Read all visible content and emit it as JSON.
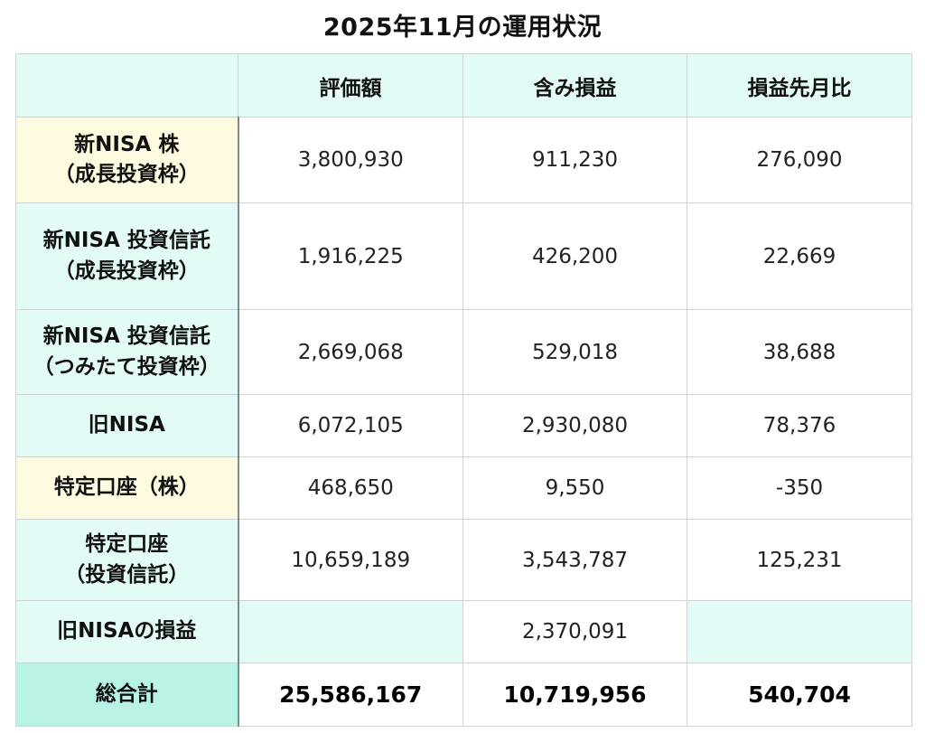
{
  "title": "2025年11月の運用状況",
  "columns": [
    "評価額",
    "含み損益",
    "損益先月比"
  ],
  "rows": [
    {
      "label_line1": "新NISA 株",
      "label_line2": "（成長投資枠）",
      "tone": "cream",
      "values": [
        "3,800,930",
        "911,230",
        "276,090"
      ]
    },
    {
      "label_line1": "新NISA 投資信託",
      "label_line2": "（成長投資枠）",
      "tone": "mint",
      "values": [
        "1,916,225",
        "426,200",
        "22,669"
      ]
    },
    {
      "label_line1": "新NISA 投資信託",
      "label_line2": "（つみたて投資枠）",
      "tone": "mint",
      "values": [
        "2,669,068",
        "529,018",
        "38,688"
      ]
    },
    {
      "label_line1": "旧NISA",
      "label_line2": "",
      "tone": "mint",
      "values": [
        "6,072,105",
        "2,930,080",
        "78,376"
      ]
    },
    {
      "label_line1": "特定口座（株）",
      "label_line2": "",
      "tone": "cream",
      "values": [
        "468,650",
        "9,550",
        "-350"
      ]
    },
    {
      "label_line1": "特定口座",
      "label_line2": "（投資信託）",
      "tone": "mint",
      "values": [
        "10,659,189",
        "3,543,787",
        "125,231"
      ]
    },
    {
      "label_line1": "旧NISAの損益",
      "label_line2": "",
      "tone": "mint",
      "values": [
        "",
        "2,370,091",
        ""
      ]
    }
  ],
  "total": {
    "label": "総合計",
    "values": [
      "25,586,167",
      "10,719,956",
      "540,704"
    ]
  },
  "colors": {
    "mint": "#e3fbf7",
    "cream": "#fffbe0",
    "teal": "#b8f3e6",
    "border": "#cfd3d3"
  }
}
